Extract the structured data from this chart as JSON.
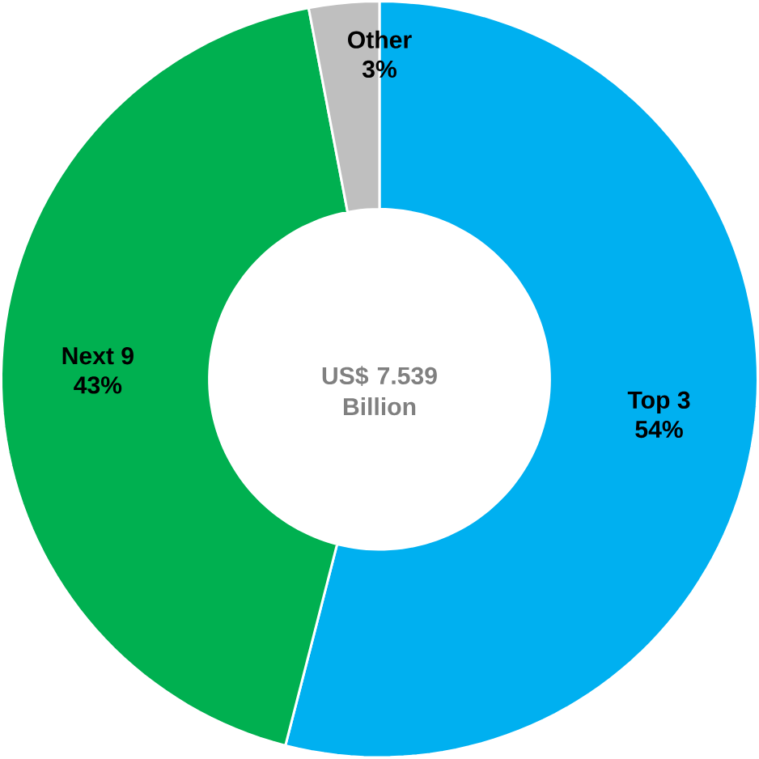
{
  "chart_data": {
    "type": "donut",
    "categories": [
      "Top 3",
      "Next 9",
      "Other"
    ],
    "values": [
      54,
      43,
      3
    ],
    "value_labels": [
      "54%",
      "43%",
      "3%"
    ],
    "colors": [
      "#00b0f0",
      "#00b050",
      "#bfbfbf"
    ],
    "annotations": [
      "US$ 7.539 Billion"
    ]
  }
}
